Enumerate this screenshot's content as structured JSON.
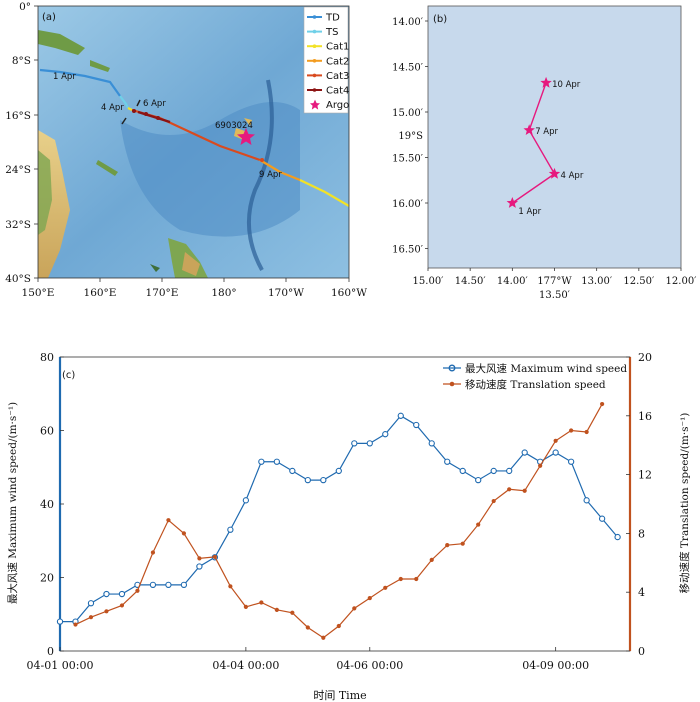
{
  "panel_a": {
    "label": "(a)",
    "lon_ticks": [
      "150°E",
      "160°E",
      "170°E",
      "180°",
      "170°W",
      "160°W"
    ],
    "lat_ticks": [
      "0°",
      "8°S",
      "16°S",
      "24°S",
      "32°S",
      "40°S"
    ],
    "legend": [
      {
        "label": "TD",
        "color": "#3a8fd6"
      },
      {
        "label": "TS",
        "color": "#6fd0e8"
      },
      {
        "label": "Cat1",
        "color": "#f2e227"
      },
      {
        "label": "Cat2",
        "color": "#f39c1f"
      },
      {
        "label": "Cat3",
        "color": "#d94a1e"
      },
      {
        "label": "Cat4",
        "color": "#8c1313"
      },
      {
        "label": "Argo",
        "color": "#e6197e"
      }
    ],
    "track_labels": [
      "1 Apr",
      "4 Apr",
      "6 Apr",
      "9 Apr"
    ],
    "argo_id": "6903024"
  },
  "panel_b": {
    "label": "(b)",
    "x_ticks": [
      "15.00′",
      "14.50′",
      "14.00′",
      "13.50′",
      "13.00′",
      "12.50′",
      "12.00′"
    ],
    "x_unit": "177°W",
    "y_ticks": [
      "14.00′",
      "14.50′",
      "15.00′",
      "15.50′",
      "16.00′",
      "16.50′"
    ],
    "y_unit": "19°S",
    "argo_color": "#e6197e",
    "points": [
      {
        "label": "1 Apr",
        "x": 14.0,
        "y": 16.0
      },
      {
        "label": "4 Apr",
        "x": 13.5,
        "y": 15.68
      },
      {
        "label": "7 Apr",
        "x": 13.8,
        "y": 15.2
      },
      {
        "label": "10 Apr",
        "x": 13.6,
        "y": 14.68
      }
    ]
  },
  "chart_data": {
    "type": "line",
    "xlabel": "时间 Time",
    "x_ticks": [
      "04-01 00:00",
      "04-04 00:00",
      "04-06 00:00",
      "04-09 00:00"
    ],
    "x_tick_values": [
      0,
      3,
      5,
      8
    ],
    "xlim": [
      0,
      9.2
    ],
    "ylabel_left": "最大风速 Maximum wind speed/(m·s⁻¹)",
    "ylabel_right": "移动速度 Translation speed/(m·s⁻¹)",
    "ylim_left": [
      0,
      80
    ],
    "ylim_right": [
      0,
      20
    ],
    "y_ticks_left": [
      0,
      20,
      40,
      60,
      80
    ],
    "y_ticks_right": [
      0,
      4,
      8,
      12,
      16,
      20
    ],
    "left_color": "#1f6ab0",
    "right_color": "#c0521f",
    "series": [
      {
        "name": "最大风速 Maximum wind speed",
        "axis": "left",
        "color": "#1f6ab0",
        "x": [
          0,
          0.25,
          0.5,
          0.75,
          1,
          1.25,
          1.5,
          1.75,
          2,
          2.25,
          2.5,
          2.75,
          3,
          3.25,
          3.5,
          3.75,
          4,
          4.25,
          4.5,
          4.75,
          5,
          5.25,
          5.5,
          5.75,
          6,
          6.25,
          6.5,
          6.75,
          7,
          7.25,
          7.5,
          7.75,
          8,
          8.25,
          8.5,
          8.75,
          9
        ],
        "values": [
          8,
          8,
          13,
          15.5,
          15.5,
          18,
          18,
          18,
          18,
          23,
          25.5,
          33,
          41,
          51.5,
          51.5,
          49,
          46.5,
          46.5,
          49,
          56.5,
          56.5,
          59,
          64,
          61.5,
          56.5,
          51.5,
          49,
          46.5,
          49,
          49,
          54,
          51.5,
          54,
          51.5,
          41,
          36,
          31
        ]
      },
      {
        "name": "移动速度 Translation speed",
        "axis": "right",
        "color": "#c0521f",
        "x": [
          0.25,
          0.5,
          0.75,
          1,
          1.25,
          1.5,
          1.75,
          2,
          2.25,
          2.5,
          2.75,
          3,
          3.25,
          3.5,
          3.75,
          4,
          4.25,
          4.5,
          4.75,
          5,
          5.25,
          5.5,
          5.75,
          6,
          6.25,
          6.5,
          6.75,
          7,
          7.25,
          7.5,
          7.75,
          8,
          8.25,
          8.5,
          8.75
        ],
        "values": [
          1.8,
          2.3,
          2.7,
          3.1,
          4.1,
          6.7,
          8.9,
          8.0,
          6.3,
          6.4,
          4.4,
          3.0,
          3.3,
          2.8,
          2.6,
          1.6,
          0.9,
          1.7,
          2.9,
          3.6,
          4.3,
          4.9,
          4.9,
          6.2,
          7.2,
          7.3,
          8.6,
          10.2,
          11.0,
          10.9,
          12.6,
          14.3,
          15.0,
          14.9,
          16.8
        ]
      }
    ],
    "panel_label": "(c)"
  }
}
